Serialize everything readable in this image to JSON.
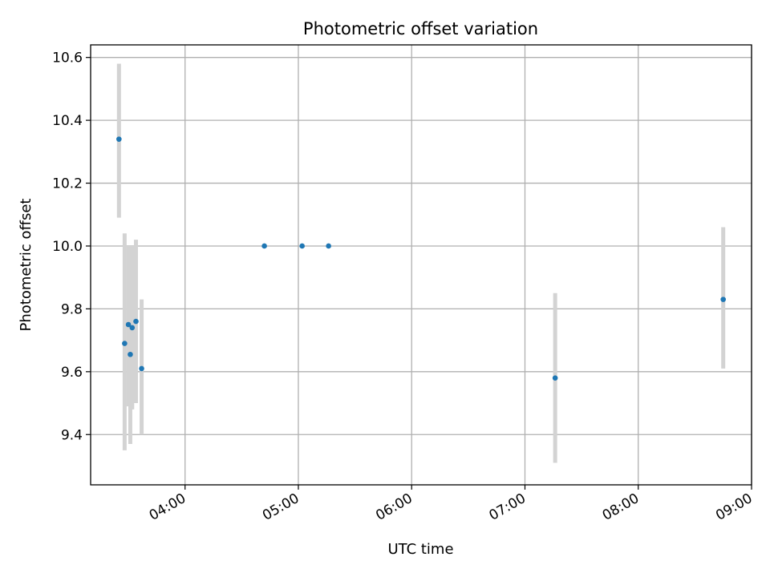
{
  "chart_data": {
    "type": "scatter",
    "title": "Photometric offset variation",
    "xlabel": "UTC time",
    "ylabel": "Photometric offset",
    "x_ticks": [
      "04:00",
      "05:00",
      "06:00",
      "07:00",
      "08:00",
      "09:00"
    ],
    "y_ticks": [
      "9.4",
      "9.6",
      "9.8",
      "10.0",
      "10.2",
      "10.4",
      "10.6"
    ],
    "xlim": [
      "03:10",
      "09:00"
    ],
    "ylim": [
      9.24,
      10.64
    ],
    "grid": true,
    "colors": {
      "points": "#1f77b4",
      "errorbars": "#d3d3d3",
      "grid": "#b0b0b0"
    },
    "points": [
      {
        "t": "03:25",
        "y": 10.34,
        "err_low": 10.09,
        "err_high": 10.58
      },
      {
        "t": "03:28",
        "y": 9.69,
        "err_low": 9.35,
        "err_high": 10.04
      },
      {
        "t": "03:30",
        "y": 9.75,
        "err_low": 9.49,
        "err_high": 10.0
      },
      {
        "t": "03:31",
        "y": 9.655,
        "err_low": 9.37,
        "err_high": 10.0
      },
      {
        "t": "03:32",
        "y": 9.74,
        "err_low": 9.48,
        "err_high": 10.0
      },
      {
        "t": "03:34",
        "y": 9.76,
        "err_low": 9.5,
        "err_high": 10.02
      },
      {
        "t": "03:37",
        "y": 9.61,
        "err_low": 9.4,
        "err_high": 9.83
      },
      {
        "t": "04:42",
        "y": 10.0
      },
      {
        "t": "05:02",
        "y": 10.0
      },
      {
        "t": "05:16",
        "y": 10.0
      },
      {
        "t": "07:16",
        "y": 9.58,
        "err_low": 9.31,
        "err_high": 9.85
      },
      {
        "t": "08:45",
        "y": 9.83,
        "err_low": 9.61,
        "err_high": 10.06
      }
    ]
  }
}
